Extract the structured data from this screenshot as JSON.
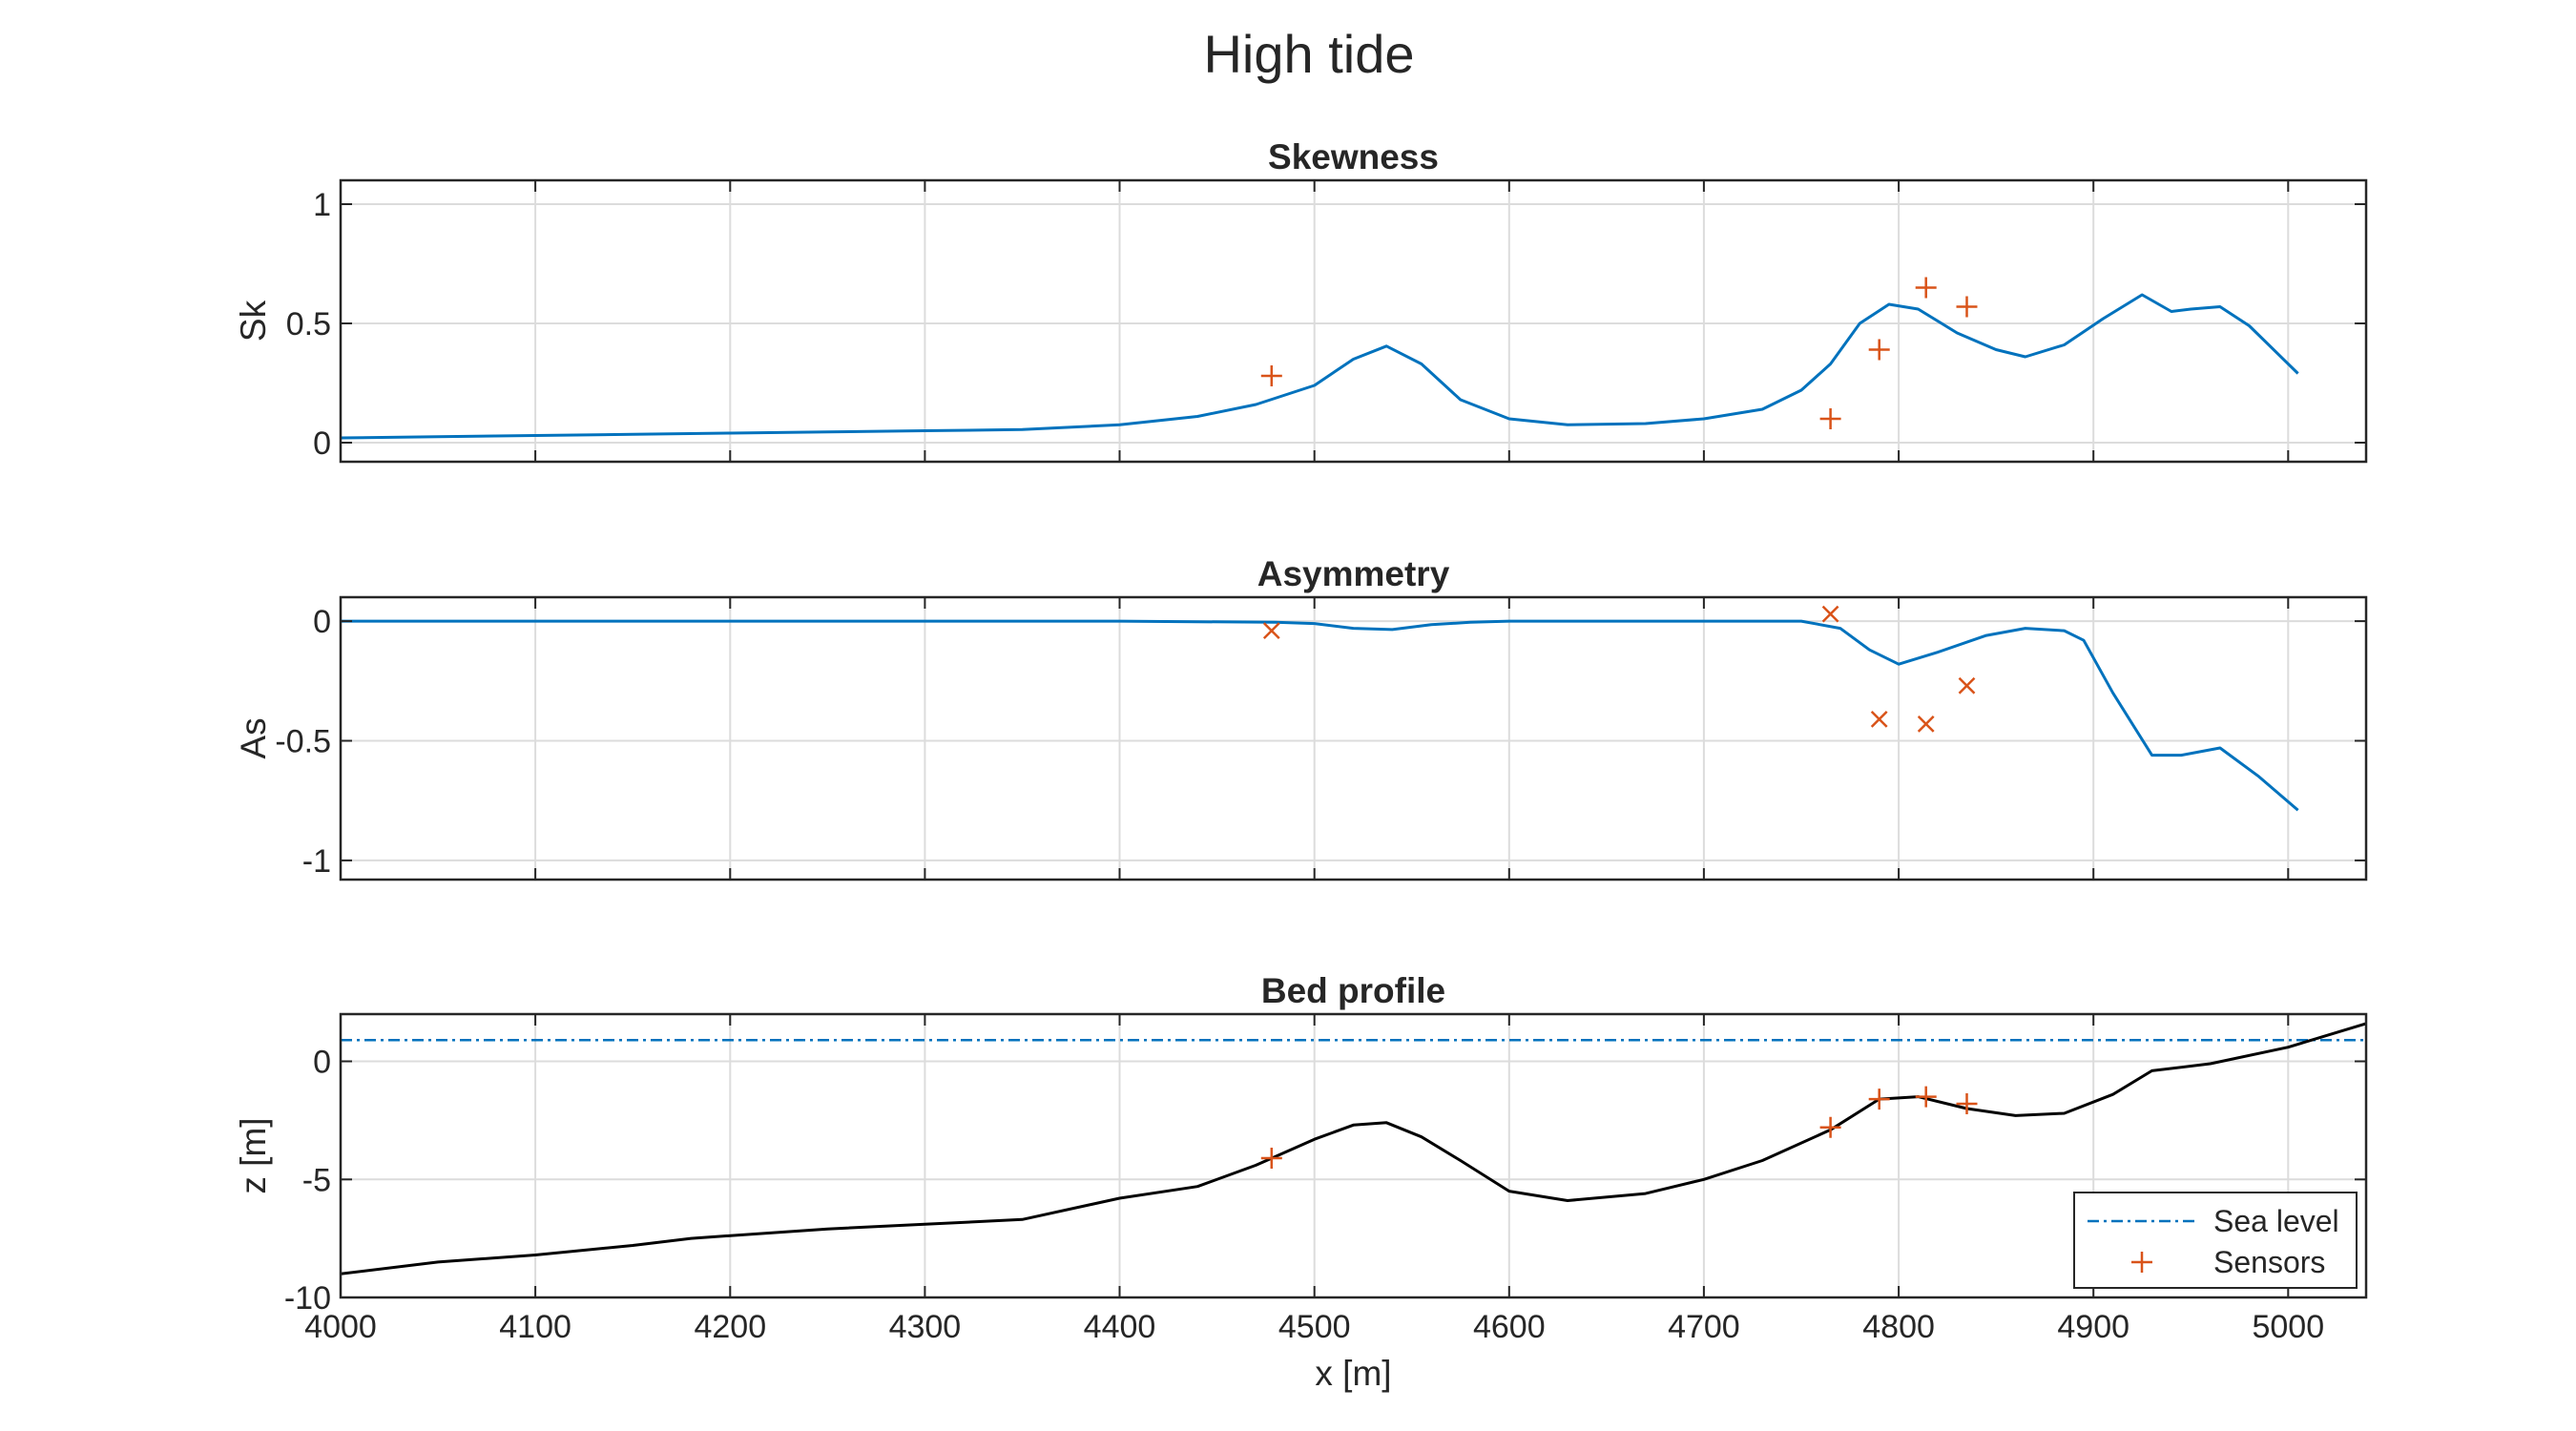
{
  "figure": {
    "title": "High tide"
  },
  "colors": {
    "model": "#0072BD",
    "sensor": "#D95319",
    "bed": "#000000",
    "grid": "#dcdcdc",
    "axes": "#262626"
  },
  "chart_data": [
    {
      "type": "line",
      "title": "Skewness",
      "xlabel": "",
      "ylabel": "Sk",
      "xlim": [
        4000,
        5040
      ],
      "ylim": [
        -0.08,
        1.1
      ],
      "xticks": [
        4000,
        4100,
        4200,
        4300,
        4400,
        4500,
        4600,
        4700,
        4800,
        4900,
        5000
      ],
      "yticks": [
        0,
        0.5,
        1
      ],
      "ytick_labels": [
        "0",
        "0.5",
        "1"
      ],
      "show_xtick_labels": false,
      "grid": true,
      "series": [
        {
          "kind": "line",
          "x": [
            4000,
            4050,
            4100,
            4150,
            4200,
            4250,
            4300,
            4350,
            4400,
            4440,
            4470,
            4500,
            4520,
            4537,
            4555,
            4575,
            4600,
            4630,
            4670,
            4700,
            4730,
            4750,
            4765,
            4780,
            4795,
            4810,
            4830,
            4850,
            4865,
            4885,
            4905,
            4925,
            4940,
            4950,
            4965,
            4980,
            5005
          ],
          "y": [
            0.02,
            0.025,
            0.03,
            0.035,
            0.04,
            0.045,
            0.05,
            0.055,
            0.075,
            0.11,
            0.16,
            0.24,
            0.35,
            0.405,
            0.33,
            0.18,
            0.1,
            0.075,
            0.08,
            0.1,
            0.14,
            0.22,
            0.33,
            0.5,
            0.58,
            0.56,
            0.46,
            0.39,
            0.36,
            0.41,
            0.52,
            0.62,
            0.55,
            0.56,
            0.57,
            0.49,
            0.29
          ]
        },
        {
          "kind": "markers",
          "marker": "+",
          "x": [
            4478,
            4765,
            4790,
            4814,
            4835
          ],
          "y": [
            0.28,
            0.1,
            0.39,
            0.65,
            0.57
          ]
        }
      ]
    },
    {
      "type": "line",
      "title": "Asymmetry",
      "xlabel": "",
      "ylabel": "As",
      "xlim": [
        4000,
        5040
      ],
      "ylim": [
        -1.08,
        0.1
      ],
      "xticks": [
        4000,
        4100,
        4200,
        4300,
        4400,
        4500,
        4600,
        4700,
        4800,
        4900,
        5000
      ],
      "yticks": [
        -1,
        -0.5,
        0
      ],
      "ytick_labels": [
        "-1",
        "-0.5",
        "0"
      ],
      "show_xtick_labels": false,
      "grid": true,
      "series": [
        {
          "kind": "line",
          "x": [
            4000,
            4200,
            4400,
            4480,
            4500,
            4520,
            4540,
            4560,
            4580,
            4600,
            4700,
            4750,
            4770,
            4785,
            4800,
            4820,
            4845,
            4865,
            4885,
            4895,
            4910,
            4930,
            4945,
            4965,
            4985,
            5005
          ],
          "y": [
            0,
            0,
            0,
            -0.005,
            -0.01,
            -0.03,
            -0.035,
            -0.015,
            -0.005,
            0,
            0,
            0,
            -0.03,
            -0.12,
            -0.18,
            -0.13,
            -0.06,
            -0.03,
            -0.04,
            -0.08,
            -0.3,
            -0.56,
            -0.56,
            -0.53,
            -0.65,
            -0.79
          ]
        },
        {
          "kind": "markers",
          "marker": "x",
          "x": [
            4478,
            4765,
            4790,
            4814,
            4835
          ],
          "y": [
            -0.04,
            0.03,
            -0.41,
            -0.43,
            -0.27
          ]
        }
      ]
    },
    {
      "type": "line",
      "title": "Bed profile",
      "xlabel": "x [m]",
      "ylabel": "z [m]",
      "xlim": [
        4000,
        5040
      ],
      "ylim": [
        -10,
        2
      ],
      "xticks": [
        4000,
        4100,
        4200,
        4300,
        4400,
        4500,
        4600,
        4700,
        4800,
        4900,
        5000
      ],
      "xtick_labels": [
        "4000",
        "4100",
        "4200",
        "4300",
        "4400",
        "4500",
        "4600",
        "4700",
        "4800",
        "4900",
        "5000"
      ],
      "yticks": [
        -10,
        -5,
        0
      ],
      "ytick_labels": [
        "-10",
        "-5",
        "0"
      ],
      "show_xtick_labels": true,
      "grid": true,
      "legend": {
        "location": "bottom-right",
        "entries": [
          "Sea level",
          "Sensors"
        ]
      },
      "series": [
        {
          "kind": "line",
          "name": "Sea level",
          "style": "dashdot",
          "x": [
            4000,
            5040
          ],
          "y": [
            0.9,
            0.9
          ]
        },
        {
          "kind": "line",
          "style": "solid-black",
          "x": [
            4000,
            4050,
            4100,
            4150,
            4180,
            4250,
            4300,
            4350,
            4400,
            4440,
            4470,
            4500,
            4520,
            4537,
            4555,
            4575,
            4600,
            4630,
            4670,
            4700,
            4730,
            4765,
            4790,
            4810,
            4835,
            4860,
            4885,
            4910,
            4930,
            4960,
            5000,
            5040
          ],
          "y": [
            -9.0,
            -8.5,
            -8.2,
            -7.8,
            -7.5,
            -7.1,
            -6.9,
            -6.7,
            -5.8,
            -5.3,
            -4.4,
            -3.3,
            -2.7,
            -2.6,
            -3.2,
            -4.2,
            -5.5,
            -5.9,
            -5.6,
            -5.0,
            -4.2,
            -2.9,
            -1.6,
            -1.5,
            -2.0,
            -2.3,
            -2.2,
            -1.4,
            -0.4,
            -0.1,
            0.6,
            1.6
          ]
        },
        {
          "kind": "markers",
          "name": "Sensors",
          "marker": "+",
          "x": [
            4478,
            4765,
            4790,
            4814,
            4835
          ],
          "y": [
            -4.1,
            -2.8,
            -1.6,
            -1.5,
            -1.8
          ]
        }
      ]
    }
  ]
}
